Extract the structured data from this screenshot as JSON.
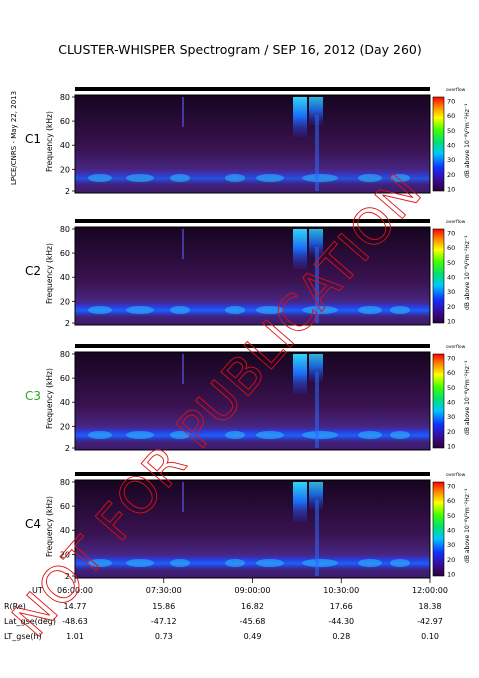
{
  "title": "CLUSTER-WHISPER Spectrogram / SEP 16, 2012 (Day 260)",
  "side_credit": "LPCE/CNRS - May 22, 2013",
  "watermark": "NOT FOR PUBLICATION",
  "chart_data": {
    "type": "heatmap",
    "panels": [
      {
        "label": "C1",
        "label_color": "#000000"
      },
      {
        "label": "C2",
        "label_color": "#000000"
      },
      {
        "label": "C3",
        "label_color": "#22aa22"
      },
      {
        "label": "C4",
        "label_color": "#000000"
      }
    ],
    "ylabel": "Frequency (kHz)",
    "yticks": [
      "80",
      "60",
      "40",
      "20",
      "2"
    ],
    "ylim": [
      2,
      80
    ],
    "colorbar": {
      "label": "dB above 10⁻⁸V²m⁻²Hz⁻¹",
      "top_text": "overflow",
      "ticks": [
        "70",
        "60",
        "50",
        "40",
        "30",
        "20",
        "10"
      ],
      "range": [
        10,
        70
      ]
    },
    "x_axis": {
      "row_label": "UT",
      "ticks": [
        "06:00:00",
        "07:30:00",
        "09:00:00",
        "10:30:00",
        "12:00:00"
      ]
    },
    "ephemeris": [
      {
        "label": "R(Re)",
        "values": [
          "14.77",
          "15.86",
          "16.82",
          "17.66",
          "18.38"
        ]
      },
      {
        "label": "Lat_gse(deg)",
        "values": [
          "-48.63",
          "-47.12",
          "-45.68",
          "-44.30",
          "-42.97"
        ]
      },
      {
        "label": "LT_gse(h)",
        "values": [
          "1.01",
          "0.73",
          "0.49",
          "0.28",
          "0.10"
        ]
      }
    ]
  }
}
